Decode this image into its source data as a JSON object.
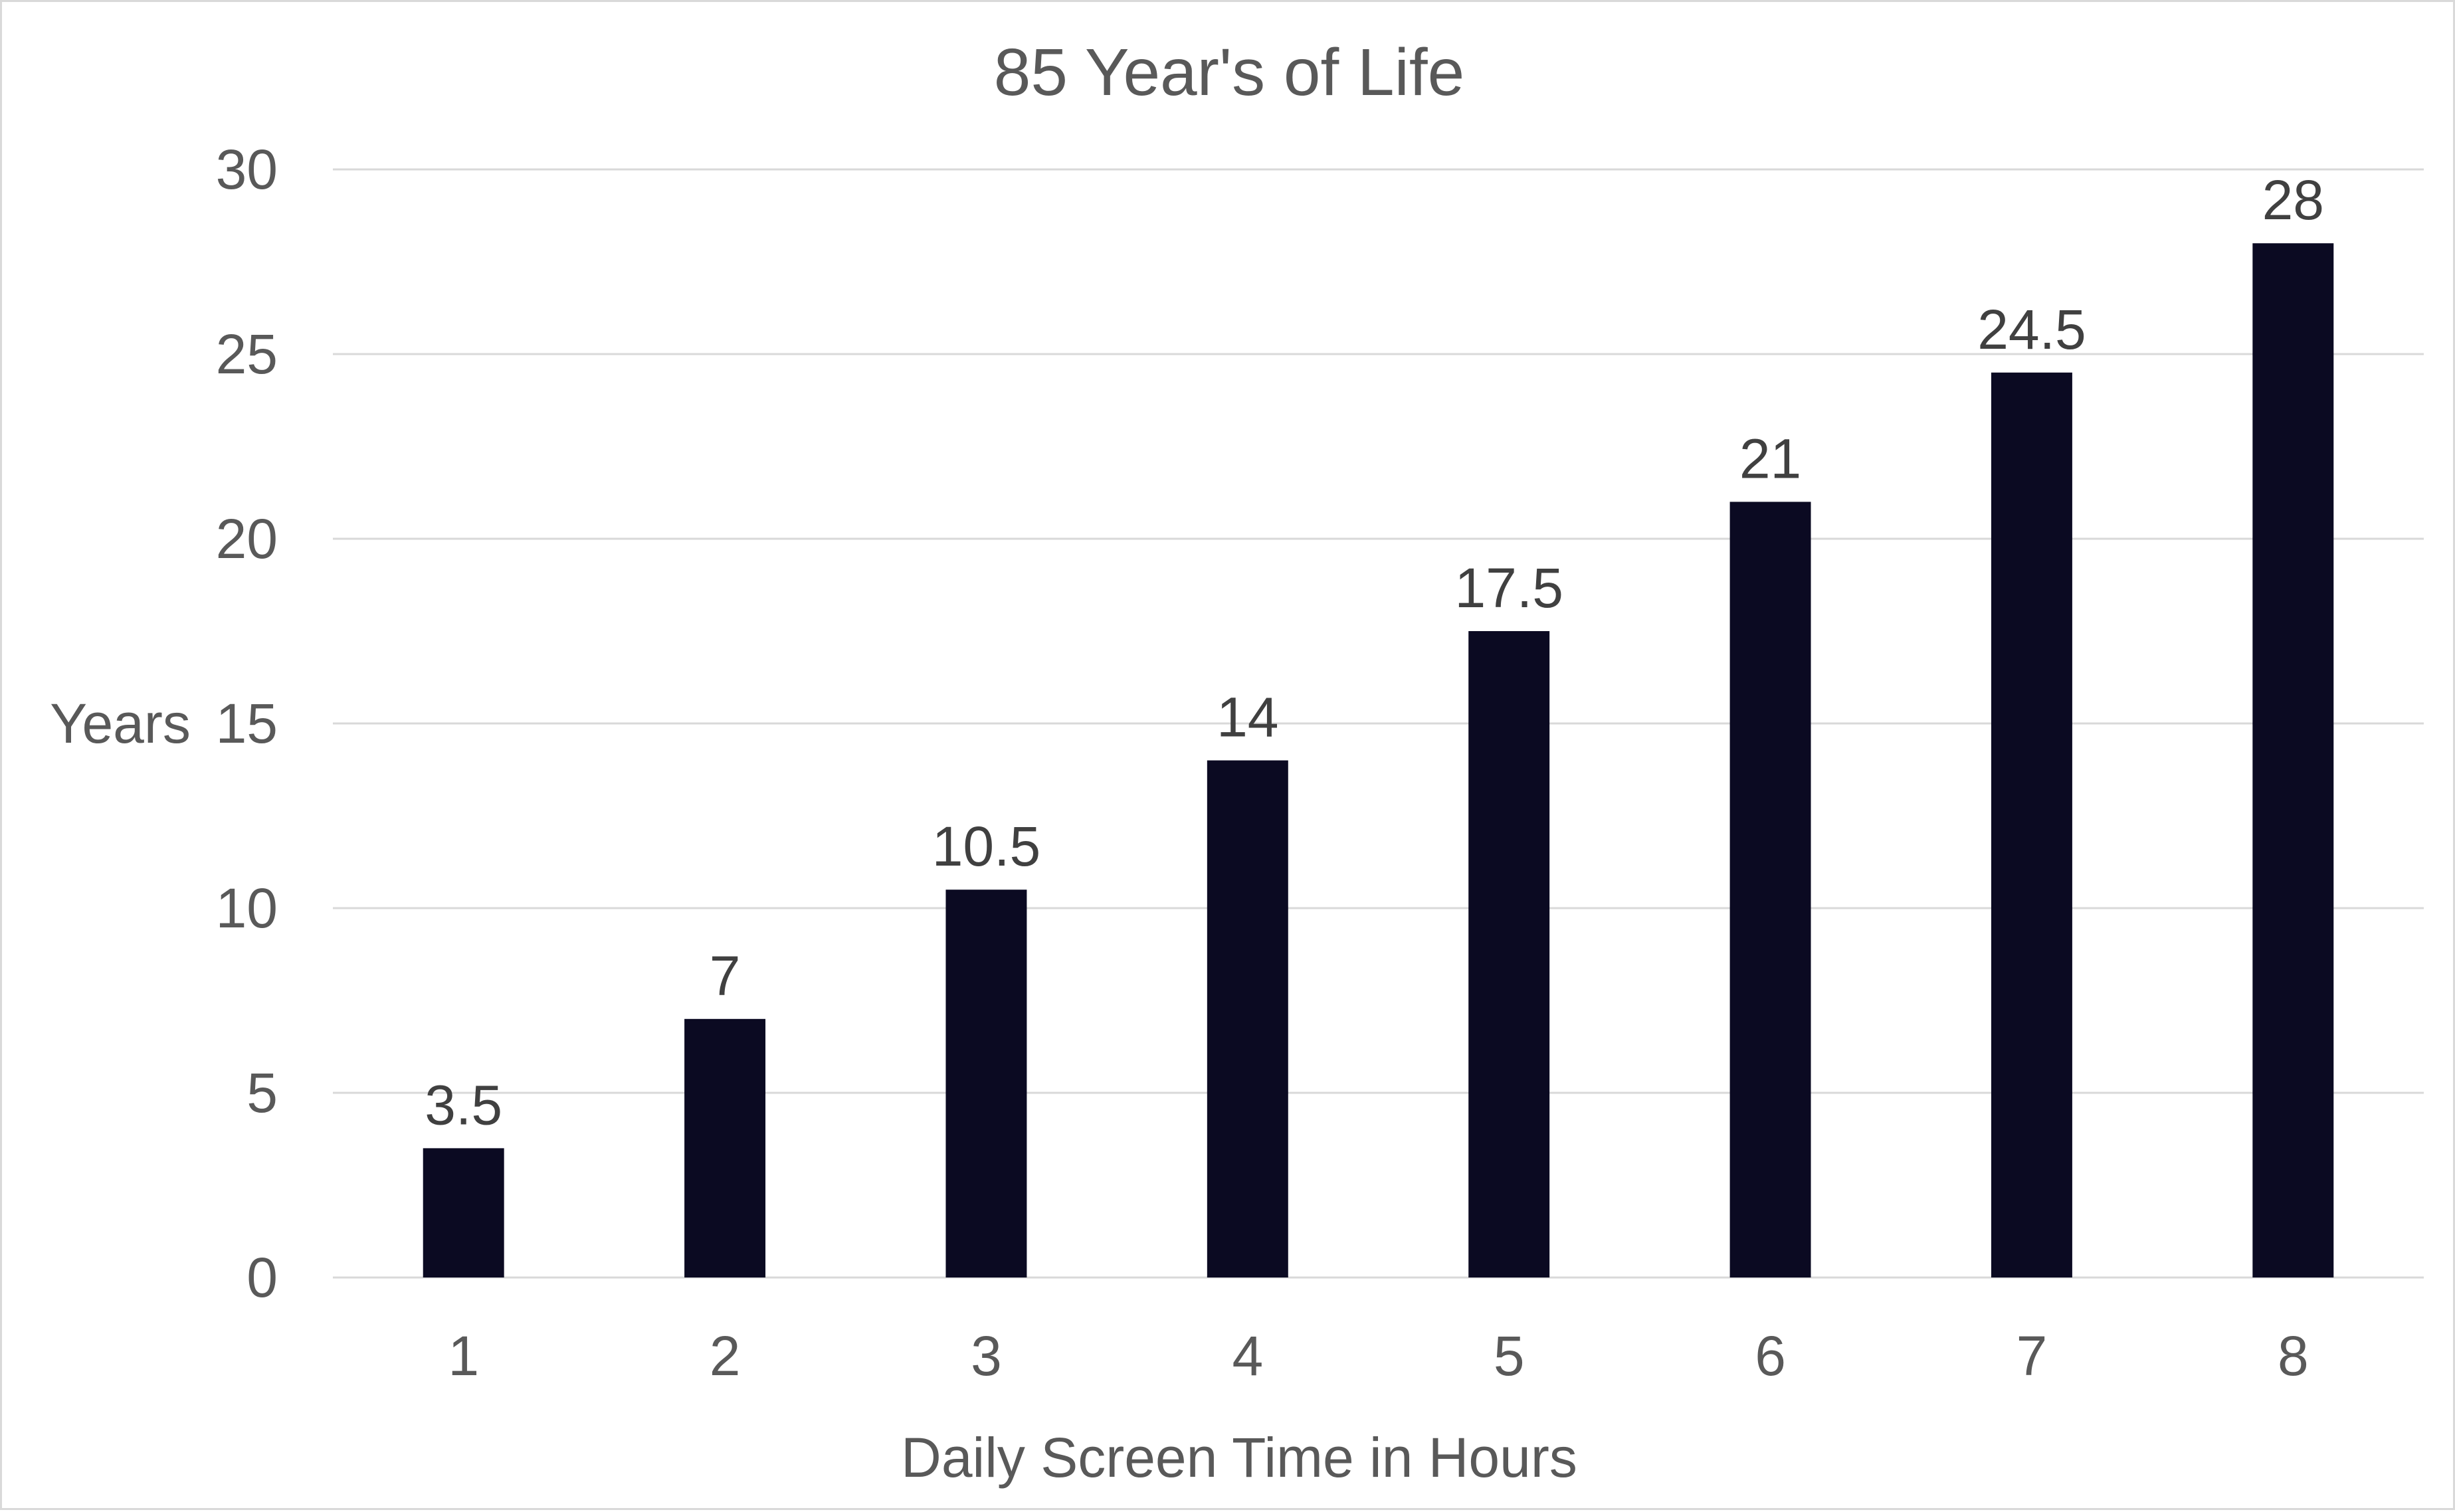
{
  "chart_data": {
    "type": "bar",
    "title": "85 Year's of Life",
    "xlabel": "Daily Screen Time in Hours",
    "ylabel": "Years",
    "categories": [
      "1",
      "2",
      "3",
      "4",
      "5",
      "6",
      "7",
      "8"
    ],
    "values": [
      3.5,
      7,
      10.5,
      14,
      17.5,
      21,
      24.5,
      28
    ],
    "data_labels": [
      "3.5",
      "7",
      "10.5",
      "14",
      "17.5",
      "21",
      "24.5",
      "28"
    ],
    "yticks": [
      "0",
      "5",
      "10",
      "15",
      "20",
      "25",
      "30"
    ],
    "ytick_values": [
      0,
      5,
      10,
      15,
      20,
      25,
      30
    ],
    "ylim": [
      0,
      30
    ],
    "grid": true,
    "legend": "none",
    "bar_color": "#0b0a22"
  }
}
